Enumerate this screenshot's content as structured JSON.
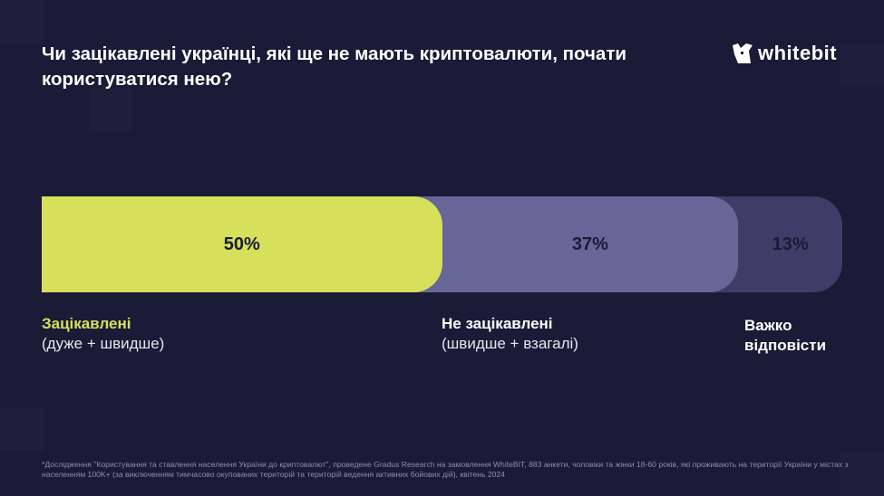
{
  "title": "Чи зацікавлені українці, які ще не мають криптовалюти, почати користуватися нею?",
  "logo": {
    "text": "whitebit",
    "icon": "fox-head-logo-icon"
  },
  "colors": {
    "background": "#1b1a37",
    "interested": "#d7e05a",
    "not_interested": "#676699",
    "hard_to_say": "#3f3d68"
  },
  "chart_data": {
    "type": "bar",
    "orientation": "horizontal-stacked-100",
    "categories": [
      "Зацікавлені",
      "Не зацікавлені",
      "Важко відповісти"
    ],
    "values": [
      50,
      37,
      13
    ],
    "data_labels": [
      "50%",
      "37%",
      "13%"
    ],
    "sublabels": [
      "(дуже + швидше)",
      "(швидше + взагалі)",
      ""
    ]
  },
  "footnote": "*Дослідження \"Користування та ставлення населення України до криптовалют\", проведене Gradus Research на замовлення WhiteBIT, 883 анкети, чоловіки та жінки 18-60 років, які проживають на території України у містах з населенням 100K+ (за виключенням тимчасово окупованих територій та територій ведення активних бойових дій), квітень 2024"
}
